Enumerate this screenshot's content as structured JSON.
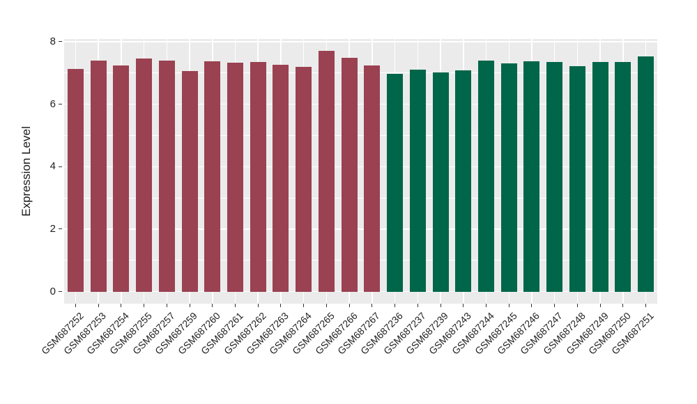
{
  "chart_data": {
    "type": "bar",
    "title": "",
    "xlabel": "",
    "ylabel": "Expression Level",
    "yticks": [
      0,
      2,
      4,
      6,
      8
    ],
    "yticks_minor": [
      1,
      3,
      5,
      7
    ],
    "ylim": [
      0,
      8
    ],
    "grid": true,
    "legend_position": "none",
    "panel_bg": "#EBEBEB",
    "grid_color": "#FFFFFF",
    "axis_text_color": "#1F1F1F",
    "tick_mark_color": "#333333",
    "x_tick_label_rotation_deg": 45,
    "series": [
      {
        "name": "maroon-group",
        "color": "#9A4152",
        "categories": [
          "GSM687252",
          "GSM687253",
          "GSM687254",
          "GSM687255",
          "GSM687257",
          "GSM687259",
          "GSM687260",
          "GSM687261",
          "GSM687262",
          "GSM687263",
          "GSM687264",
          "GSM687265",
          "GSM687266",
          "GSM687267"
        ],
        "values": [
          7.13,
          7.4,
          7.24,
          7.45,
          7.39,
          7.05,
          7.38,
          7.32,
          7.34,
          7.27,
          7.2,
          7.7,
          7.49,
          7.24
        ]
      },
      {
        "name": "green-group",
        "color": "#006649",
        "categories": [
          "GSM687236",
          "GSM687237",
          "GSM687239",
          "GSM687243",
          "GSM687244",
          "GSM687245",
          "GSM687246",
          "GSM687247",
          "GSM687248",
          "GSM687249",
          "GSM687250",
          "GSM687251"
        ],
        "values": [
          6.96,
          7.1,
          7.01,
          7.08,
          7.4,
          7.3,
          7.37,
          7.35,
          7.22,
          7.36,
          7.36,
          7.53
        ]
      }
    ]
  }
}
